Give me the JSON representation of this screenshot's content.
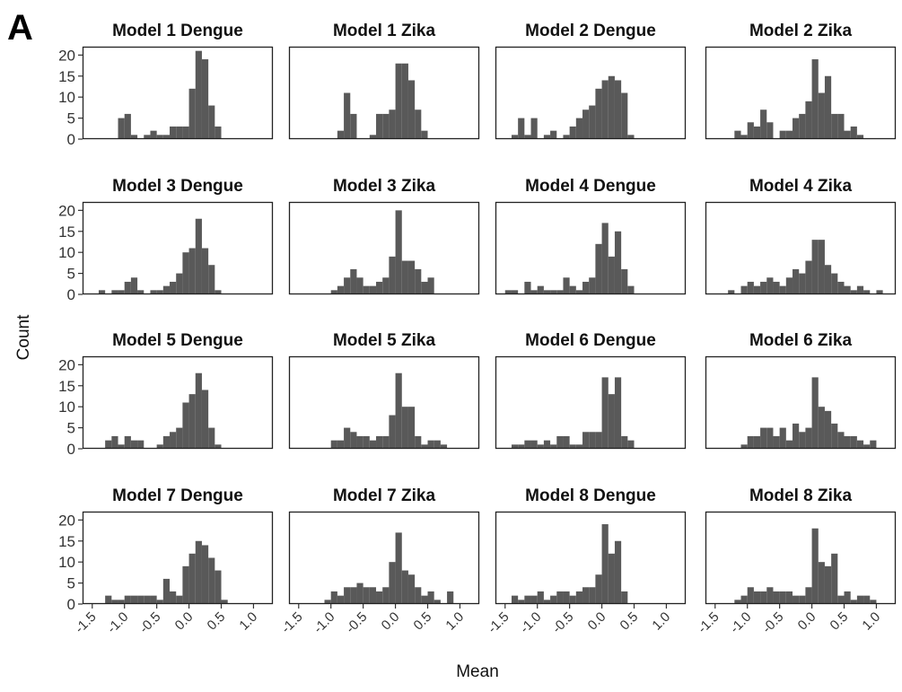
{
  "figure": {
    "panel_label": "A",
    "xlabel": "Mean",
    "ylabel": "Count"
  },
  "chart_data": {
    "type": "histogram",
    "layout": "4x4 facet grid",
    "xlim": [
      -1.65,
      1.3
    ],
    "ylim": [
      0,
      22
    ],
    "bin_width": 0.1,
    "x_ticks": [
      "-1.5",
      "-1.0",
      "-0.5",
      "0.0",
      "0.5",
      "1.0"
    ],
    "x_tick_values": [
      -1.5,
      -1.0,
      -0.5,
      0.0,
      0.5,
      1.0
    ],
    "y_ticks": [
      "0",
      "5",
      "10",
      "15",
      "20"
    ],
    "y_tick_values": [
      0,
      5,
      10,
      15,
      20
    ],
    "bar_color": "#595959",
    "panels": [
      {
        "title": "Model 1 Dengue",
        "bins": [
          [
            -1.05,
            5
          ],
          [
            -0.95,
            6
          ],
          [
            -0.85,
            1
          ],
          [
            -0.65,
            1
          ],
          [
            -0.55,
            2
          ],
          [
            -0.45,
            1
          ],
          [
            -0.35,
            1
          ],
          [
            -0.25,
            3
          ],
          [
            -0.15,
            3
          ],
          [
            -0.05,
            3
          ],
          [
            0.05,
            12
          ],
          [
            0.15,
            21
          ],
          [
            0.25,
            19
          ],
          [
            0.35,
            8
          ],
          [
            0.45,
            3
          ]
        ]
      },
      {
        "title": "Model 1 Zika",
        "bins": [
          [
            -0.85,
            2
          ],
          [
            -0.75,
            11
          ],
          [
            -0.65,
            6
          ],
          [
            -0.35,
            1
          ],
          [
            -0.25,
            6
          ],
          [
            -0.15,
            6
          ],
          [
            -0.05,
            7
          ],
          [
            0.05,
            18
          ],
          [
            0.15,
            18
          ],
          [
            0.25,
            14
          ],
          [
            0.35,
            7
          ],
          [
            0.45,
            2
          ]
        ]
      },
      {
        "title": "Model 2 Dengue",
        "bins": [
          [
            -1.35,
            1
          ],
          [
            -1.25,
            5
          ],
          [
            -1.15,
            1
          ],
          [
            -1.05,
            5
          ],
          [
            -0.85,
            1
          ],
          [
            -0.75,
            2
          ],
          [
            -0.55,
            1
          ],
          [
            -0.45,
            3
          ],
          [
            -0.35,
            5
          ],
          [
            -0.25,
            7
          ],
          [
            -0.15,
            8
          ],
          [
            -0.05,
            12
          ],
          [
            0.05,
            14
          ],
          [
            0.15,
            15
          ],
          [
            0.25,
            14
          ],
          [
            0.35,
            11
          ],
          [
            0.45,
            1
          ]
        ]
      },
      {
        "title": "Model 2 Zika",
        "bins": [
          [
            -1.15,
            2
          ],
          [
            -1.05,
            1
          ],
          [
            -0.95,
            4
          ],
          [
            -0.85,
            3
          ],
          [
            -0.75,
            7
          ],
          [
            -0.65,
            4
          ],
          [
            -0.45,
            2
          ],
          [
            -0.35,
            2
          ],
          [
            -0.25,
            5
          ],
          [
            -0.15,
            6
          ],
          [
            -0.05,
            9
          ],
          [
            0.05,
            19
          ],
          [
            0.15,
            11
          ],
          [
            0.25,
            15
          ],
          [
            0.35,
            6
          ],
          [
            0.45,
            6
          ],
          [
            0.55,
            2
          ],
          [
            0.65,
            3
          ],
          [
            0.75,
            1
          ]
        ]
      },
      {
        "title": "Model 3 Dengue",
        "bins": [
          [
            -1.35,
            1
          ],
          [
            -1.15,
            1
          ],
          [
            -1.05,
            1
          ],
          [
            -0.95,
            3
          ],
          [
            -0.85,
            4
          ],
          [
            -0.75,
            1
          ],
          [
            -0.55,
            1
          ],
          [
            -0.45,
            1
          ],
          [
            -0.35,
            2
          ],
          [
            -0.25,
            3
          ],
          [
            -0.15,
            5
          ],
          [
            -0.05,
            10
          ],
          [
            0.05,
            11
          ],
          [
            0.15,
            18
          ],
          [
            0.25,
            11
          ],
          [
            0.35,
            7
          ],
          [
            0.45,
            1
          ]
        ]
      },
      {
        "title": "Model 3 Zika",
        "bins": [
          [
            -0.95,
            1
          ],
          [
            -0.85,
            2
          ],
          [
            -0.75,
            4
          ],
          [
            -0.65,
            6
          ],
          [
            -0.55,
            4
          ],
          [
            -0.45,
            2
          ],
          [
            -0.35,
            2
          ],
          [
            -0.25,
            3
          ],
          [
            -0.15,
            4
          ],
          [
            -0.05,
            9
          ],
          [
            0.05,
            20
          ],
          [
            0.15,
            8
          ],
          [
            0.25,
            8
          ],
          [
            0.35,
            6
          ],
          [
            0.45,
            3
          ],
          [
            0.55,
            4
          ]
        ]
      },
      {
        "title": "Model 4 Dengue",
        "bins": [
          [
            -1.45,
            1
          ],
          [
            -1.35,
            1
          ],
          [
            -1.15,
            3
          ],
          [
            -1.05,
            1
          ],
          [
            -0.95,
            2
          ],
          [
            -0.85,
            1
          ],
          [
            -0.75,
            1
          ],
          [
            -0.65,
            1
          ],
          [
            -0.55,
            4
          ],
          [
            -0.45,
            2
          ],
          [
            -0.35,
            1
          ],
          [
            -0.25,
            3
          ],
          [
            -0.15,
            4
          ],
          [
            -0.05,
            12
          ],
          [
            0.05,
            17
          ],
          [
            0.15,
            9
          ],
          [
            0.25,
            15
          ],
          [
            0.35,
            6
          ],
          [
            0.45,
            2
          ]
        ]
      },
      {
        "title": "Model 4 Zika",
        "bins": [
          [
            -1.25,
            1
          ],
          [
            -1.05,
            2
          ],
          [
            -0.95,
            3
          ],
          [
            -0.85,
            2
          ],
          [
            -0.75,
            3
          ],
          [
            -0.65,
            4
          ],
          [
            -0.55,
            3
          ],
          [
            -0.45,
            2
          ],
          [
            -0.35,
            4
          ],
          [
            -0.25,
            6
          ],
          [
            -0.15,
            5
          ],
          [
            -0.05,
            8
          ],
          [
            0.05,
            13
          ],
          [
            0.15,
            13
          ],
          [
            0.25,
            7
          ],
          [
            0.35,
            5
          ],
          [
            0.45,
            3
          ],
          [
            0.55,
            2
          ],
          [
            0.65,
            1
          ],
          [
            0.75,
            2
          ],
          [
            0.85,
            1
          ],
          [
            1.05,
            1
          ]
        ]
      },
      {
        "title": "Model 5 Dengue",
        "bins": [
          [
            -1.25,
            2
          ],
          [
            -1.15,
            3
          ],
          [
            -1.05,
            1
          ],
          [
            -0.95,
            3
          ],
          [
            -0.85,
            2
          ],
          [
            -0.75,
            2
          ],
          [
            -0.45,
            1
          ],
          [
            -0.35,
            3
          ],
          [
            -0.25,
            4
          ],
          [
            -0.15,
            5
          ],
          [
            -0.05,
            11
          ],
          [
            0.05,
            13
          ],
          [
            0.15,
            18
          ],
          [
            0.25,
            14
          ],
          [
            0.35,
            5
          ],
          [
            0.45,
            1
          ]
        ]
      },
      {
        "title": "Model 5 Zika",
        "bins": [
          [
            -0.95,
            2
          ],
          [
            -0.85,
            2
          ],
          [
            -0.75,
            5
          ],
          [
            -0.65,
            4
          ],
          [
            -0.55,
            3
          ],
          [
            -0.45,
            3
          ],
          [
            -0.35,
            2
          ],
          [
            -0.25,
            3
          ],
          [
            -0.15,
            3
          ],
          [
            -0.05,
            8
          ],
          [
            0.05,
            18
          ],
          [
            0.15,
            10
          ],
          [
            0.25,
            10
          ],
          [
            0.35,
            3
          ],
          [
            0.45,
            1
          ],
          [
            0.55,
            2
          ],
          [
            0.65,
            2
          ],
          [
            0.75,
            1
          ]
        ]
      },
      {
        "title": "Model 6 Dengue",
        "bins": [
          [
            -1.35,
            1
          ],
          [
            -1.25,
            1
          ],
          [
            -1.15,
            2
          ],
          [
            -1.05,
            2
          ],
          [
            -0.95,
            1
          ],
          [
            -0.85,
            2
          ],
          [
            -0.75,
            1
          ],
          [
            -0.65,
            3
          ],
          [
            -0.55,
            3
          ],
          [
            -0.45,
            1
          ],
          [
            -0.35,
            1
          ],
          [
            -0.25,
            4
          ],
          [
            -0.15,
            4
          ],
          [
            -0.05,
            4
          ],
          [
            0.05,
            17
          ],
          [
            0.15,
            13
          ],
          [
            0.25,
            17
          ],
          [
            0.35,
            3
          ],
          [
            0.45,
            2
          ]
        ]
      },
      {
        "title": "Model 6 Zika",
        "bins": [
          [
            -1.05,
            1
          ],
          [
            -0.95,
            3
          ],
          [
            -0.85,
            3
          ],
          [
            -0.75,
            5
          ],
          [
            -0.65,
            5
          ],
          [
            -0.55,
            3
          ],
          [
            -0.45,
            5
          ],
          [
            -0.35,
            2
          ],
          [
            -0.25,
            6
          ],
          [
            -0.15,
            4
          ],
          [
            -0.05,
            5
          ],
          [
            0.05,
            17
          ],
          [
            0.15,
            10
          ],
          [
            0.25,
            9
          ],
          [
            0.35,
            6
          ],
          [
            0.45,
            4
          ],
          [
            0.55,
            3
          ],
          [
            0.65,
            3
          ],
          [
            0.75,
            2
          ],
          [
            0.85,
            1
          ],
          [
            0.95,
            2
          ]
        ]
      },
      {
        "title": "Model 7 Dengue",
        "bins": [
          [
            -1.25,
            2
          ],
          [
            -1.15,
            1
          ],
          [
            -1.05,
            1
          ],
          [
            -0.95,
            2
          ],
          [
            -0.85,
            2
          ],
          [
            -0.75,
            2
          ],
          [
            -0.65,
            2
          ],
          [
            -0.55,
            2
          ],
          [
            -0.45,
            1
          ],
          [
            -0.35,
            6
          ],
          [
            -0.25,
            3
          ],
          [
            -0.15,
            2
          ],
          [
            -0.05,
            9
          ],
          [
            0.05,
            12
          ],
          [
            0.15,
            15
          ],
          [
            0.25,
            14
          ],
          [
            0.35,
            11
          ],
          [
            0.45,
            8
          ],
          [
            0.55,
            1
          ]
        ]
      },
      {
        "title": "Model 7 Zika",
        "bins": [
          [
            -1.05,
            1
          ],
          [
            -0.95,
            3
          ],
          [
            -0.85,
            2
          ],
          [
            -0.75,
            4
          ],
          [
            -0.65,
            4
          ],
          [
            -0.55,
            5
          ],
          [
            -0.45,
            4
          ],
          [
            -0.35,
            4
          ],
          [
            -0.25,
            3
          ],
          [
            -0.15,
            4
          ],
          [
            -0.05,
            10
          ],
          [
            0.05,
            17
          ],
          [
            0.15,
            8
          ],
          [
            0.25,
            7
          ],
          [
            0.35,
            4
          ],
          [
            0.45,
            2
          ],
          [
            0.55,
            3
          ],
          [
            0.65,
            1
          ],
          [
            0.85,
            3
          ]
        ]
      },
      {
        "title": "Model 8 Dengue",
        "bins": [
          [
            -1.35,
            2
          ],
          [
            -1.25,
            1
          ],
          [
            -1.15,
            2
          ],
          [
            -1.05,
            2
          ],
          [
            -0.95,
            3
          ],
          [
            -0.85,
            1
          ],
          [
            -0.75,
            2
          ],
          [
            -0.65,
            3
          ],
          [
            -0.55,
            3
          ],
          [
            -0.45,
            2
          ],
          [
            -0.35,
            3
          ],
          [
            -0.25,
            4
          ],
          [
            -0.15,
            4
          ],
          [
            -0.05,
            7
          ],
          [
            0.05,
            19
          ],
          [
            0.15,
            12
          ],
          [
            0.25,
            15
          ],
          [
            0.35,
            3
          ]
        ]
      },
      {
        "title": "Model 8 Zika",
        "bins": [
          [
            -1.15,
            1
          ],
          [
            -1.05,
            2
          ],
          [
            -0.95,
            4
          ],
          [
            -0.85,
            3
          ],
          [
            -0.75,
            3
          ],
          [
            -0.65,
            4
          ],
          [
            -0.55,
            3
          ],
          [
            -0.45,
            3
          ],
          [
            -0.35,
            3
          ],
          [
            -0.25,
            2
          ],
          [
            -0.15,
            2
          ],
          [
            -0.05,
            4
          ],
          [
            0.05,
            18
          ],
          [
            0.15,
            10
          ],
          [
            0.25,
            9
          ],
          [
            0.35,
            12
          ],
          [
            0.45,
            2
          ],
          [
            0.55,
            3
          ],
          [
            0.65,
            1
          ],
          [
            0.75,
            2
          ],
          [
            0.85,
            2
          ],
          [
            0.95,
            1
          ]
        ]
      }
    ]
  }
}
